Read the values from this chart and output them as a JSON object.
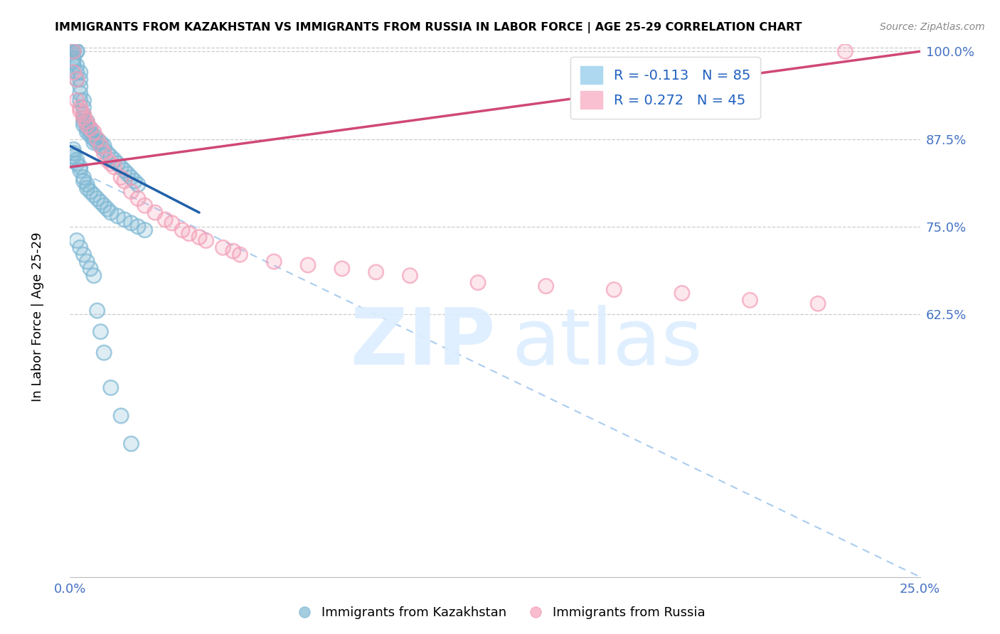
{
  "title": "IMMIGRANTS FROM KAZAKHSTAN VS IMMIGRANTS FROM RUSSIA IN LABOR FORCE | AGE 25-29 CORRELATION CHART",
  "source": "Source: ZipAtlas.com",
  "ylabel": "In Labor Force | Age 25-29",
  "xlim": [
    0.0,
    0.25
  ],
  "ylim": [
    0.25,
    1.01
  ],
  "ytick_vals": [
    0.625,
    0.75,
    0.875,
    1.0
  ],
  "ytick_labels": [
    "62.5%",
    "75.0%",
    "87.5%",
    "100.0%"
  ],
  "xtick_vals": [
    0.0,
    0.05,
    0.1,
    0.15,
    0.2,
    0.25
  ],
  "xtick_labels": [
    "0.0%",
    "",
    "",
    "",
    "",
    "25.0%"
  ],
  "legend_R1": "R = -0.113",
  "legend_N1": "N = 85",
  "legend_R2": "R = 0.272",
  "legend_N2": "N = 45",
  "kaz_color": "#7eb8d4",
  "russia_color": "#f4a0b8",
  "trend_kaz_color": "#2060a8",
  "trend_russia_color": "#d04878",
  "dash_color": "#aaccee",
  "kaz_trend": [
    0.0,
    0.865,
    0.038,
    0.77
  ],
  "russia_trend": [
    0.0,
    0.835,
    0.25,
    1.0
  ],
  "dash_trend": [
    0.0,
    0.835,
    0.25,
    0.25
  ],
  "kaz_x": [
    0.001,
    0.001,
    0.001,
    0.001,
    0.001,
    0.001,
    0.001,
    0.001,
    0.002,
    0.002,
    0.002,
    0.002,
    0.002,
    0.003,
    0.003,
    0.003,
    0.003,
    0.003,
    0.004,
    0.004,
    0.004,
    0.004,
    0.004,
    0.004,
    0.005,
    0.005,
    0.005,
    0.005,
    0.006,
    0.006,
    0.006,
    0.007,
    0.007,
    0.007,
    0.008,
    0.008,
    0.009,
    0.009,
    0.01,
    0.01,
    0.011,
    0.012,
    0.013,
    0.014,
    0.015,
    0.016,
    0.017,
    0.018,
    0.019,
    0.02,
    0.001,
    0.001,
    0.001,
    0.002,
    0.002,
    0.003,
    0.003,
    0.004,
    0.004,
    0.005,
    0.005,
    0.006,
    0.007,
    0.008,
    0.009,
    0.01,
    0.011,
    0.012,
    0.014,
    0.016,
    0.018,
    0.02,
    0.022,
    0.002,
    0.003,
    0.004,
    0.005,
    0.006,
    0.007,
    0.008,
    0.009,
    0.01,
    0.012,
    0.015,
    0.018
  ],
  "kaz_y": [
    1.0,
    1.0,
    1.0,
    1.0,
    1.0,
    0.99,
    0.985,
    0.98,
    1.0,
    1.0,
    0.98,
    0.97,
    0.96,
    0.97,
    0.96,
    0.95,
    0.94,
    0.93,
    0.93,
    0.92,
    0.91,
    0.905,
    0.9,
    0.895,
    0.9,
    0.895,
    0.89,
    0.885,
    0.89,
    0.885,
    0.88,
    0.88,
    0.875,
    0.87,
    0.875,
    0.87,
    0.87,
    0.865,
    0.865,
    0.86,
    0.855,
    0.85,
    0.845,
    0.84,
    0.835,
    0.83,
    0.825,
    0.82,
    0.815,
    0.81,
    0.86,
    0.855,
    0.85,
    0.845,
    0.84,
    0.835,
    0.83,
    0.82,
    0.815,
    0.81,
    0.805,
    0.8,
    0.795,
    0.79,
    0.785,
    0.78,
    0.775,
    0.77,
    0.765,
    0.76,
    0.755,
    0.75,
    0.745,
    0.73,
    0.72,
    0.71,
    0.7,
    0.69,
    0.68,
    0.63,
    0.6,
    0.57,
    0.52,
    0.48,
    0.44
  ],
  "russia_x": [
    0.001,
    0.001,
    0.002,
    0.002,
    0.003,
    0.003,
    0.004,
    0.004,
    0.005,
    0.005,
    0.006,
    0.007,
    0.008,
    0.009,
    0.01,
    0.011,
    0.012,
    0.013,
    0.015,
    0.016,
    0.018,
    0.02,
    0.022,
    0.025,
    0.028,
    0.03,
    0.033,
    0.035,
    0.038,
    0.04,
    0.045,
    0.048,
    0.05,
    0.06,
    0.07,
    0.08,
    0.09,
    0.1,
    0.12,
    0.14,
    0.16,
    0.18,
    0.2,
    0.22,
    0.228
  ],
  "russia_y": [
    1.0,
    0.97,
    0.96,
    0.93,
    0.92,
    0.915,
    0.91,
    0.905,
    0.9,
    0.895,
    0.89,
    0.885,
    0.875,
    0.865,
    0.855,
    0.845,
    0.84,
    0.835,
    0.82,
    0.815,
    0.8,
    0.79,
    0.78,
    0.77,
    0.76,
    0.755,
    0.745,
    0.74,
    0.735,
    0.73,
    0.72,
    0.715,
    0.71,
    0.7,
    0.695,
    0.69,
    0.685,
    0.68,
    0.67,
    0.665,
    0.66,
    0.655,
    0.645,
    0.64,
    1.0
  ]
}
